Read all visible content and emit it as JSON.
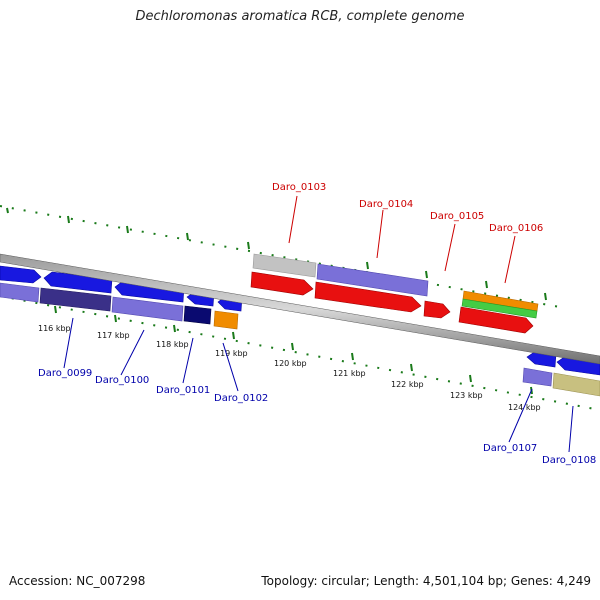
{
  "title": "Dechloromonas aromatica RCB, complete genome",
  "footer": {
    "accession": "Accession: NC_007298",
    "stats": "Topology: circular; Length: 4,501,104 bp; Genes: 4,249"
  },
  "colors": {
    "tick": "#1a7a1a",
    "label_top": "#cc0000",
    "label_bottom": "#0000aa",
    "backbone": "#808080"
  },
  "kbp_labels": [
    "116 kbp",
    "117 kbp",
    "118 kbp",
    "119 kbp",
    "120 kbp",
    "121 kbp",
    "122 kbp",
    "123 kbp",
    "124 kbp"
  ],
  "gene_labels": [
    "Daro_0099",
    "Daro_0100",
    "Daro_0101",
    "Daro_0102",
    "Daro_0103",
    "Daro_0104",
    "Daro_0105",
    "Daro_0106",
    "Daro_0107",
    "Daro_0108"
  ]
}
